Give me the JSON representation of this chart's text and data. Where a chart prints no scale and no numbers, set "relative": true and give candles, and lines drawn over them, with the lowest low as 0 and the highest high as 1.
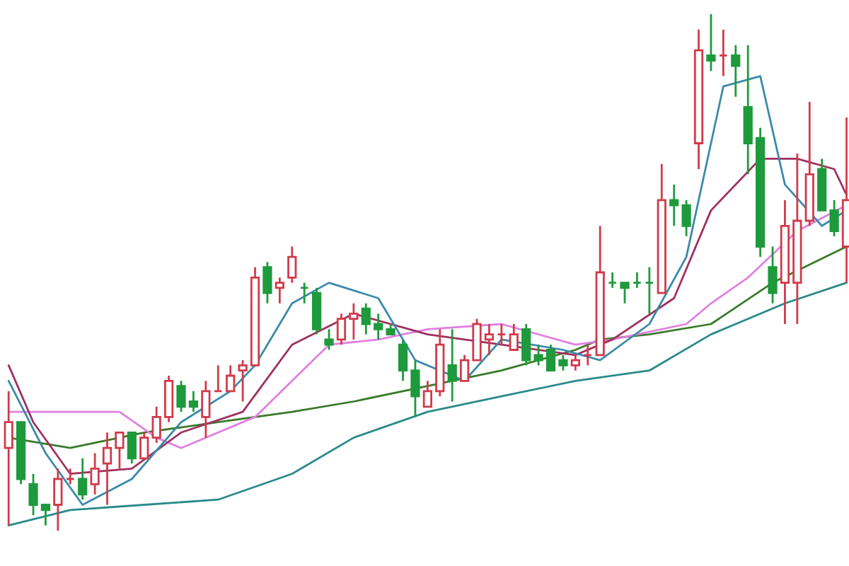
{
  "chart_data": {
    "type": "candlestick",
    "relative": true,
    "categories": [
      null,
      null,
      null,
      null,
      null,
      null,
      null,
      null,
      null,
      null,
      null,
      null,
      null,
      null,
      null,
      null,
      null,
      null,
      null,
      null,
      null,
      null,
      null,
      null,
      null,
      null,
      null,
      null,
      null,
      null,
      null,
      null,
      null,
      null,
      null,
      null,
      null,
      null,
      null,
      null,
      null,
      null,
      null,
      null,
      null,
      null,
      null,
      null,
      null,
      null,
      null,
      null,
      null,
      null,
      null,
      null,
      null,
      null,
      null,
      null,
      null,
      null,
      null,
      null,
      null,
      null,
      null,
      null,
      null
    ],
    "ohlc": [
      [
        0.16,
        0.27,
        0.01,
        0.21
      ],
      [
        0.21,
        0.21,
        0.09,
        0.1
      ],
      [
        0.09,
        0.11,
        0.03,
        0.05
      ],
      [
        0.05,
        0.05,
        0.01,
        0.04
      ],
      [
        0.05,
        0.12,
        0,
        0.1
      ],
      [
        0.1,
        0.12,
        0.09,
        0.1
      ],
      [
        0.1,
        0.14,
        0.06,
        0.07
      ],
      [
        0.09,
        0.15,
        0.07,
        0.12
      ],
      [
        0.13,
        0.19,
        0.05,
        0.16
      ],
      [
        0.16,
        0.19,
        0.12,
        0.19
      ],
      [
        0.19,
        0.19,
        0.13,
        0.14
      ],
      [
        0.14,
        0.19,
        0.14,
        0.18
      ],
      [
        0.18,
        0.24,
        0.17,
        0.22
      ],
      [
        0.22,
        0.3,
        0.21,
        0.29
      ],
      [
        0.28,
        0.29,
        0.23,
        0.24
      ],
      [
        0.25,
        0.27,
        0.23,
        0.24
      ],
      [
        0.22,
        0.29,
        0.18,
        0.27
      ],
      [
        0.27,
        0.32,
        0.27,
        0.27
      ],
      [
        0.27,
        0.32,
        0.27,
        0.3
      ],
      [
        0.31,
        0.33,
        0.25,
        0.32
      ],
      [
        0.32,
        0.51,
        0.32,
        0.49
      ],
      [
        0.51,
        0.52,
        0.44,
        0.46
      ],
      [
        0.47,
        0.49,
        0.44,
        0.48
      ],
      [
        0.49,
        0.55,
        0.48,
        0.53
      ],
      [
        0.47,
        0.48,
        0.44,
        0.47
      ],
      [
        0.46,
        0.47,
        0.38,
        0.39
      ],
      [
        0.37,
        0.39,
        0.35,
        0.36
      ],
      [
        0.37,
        0.42,
        0.36,
        0.41
      ],
      [
        0.41,
        0.44,
        0.37,
        0.42
      ],
      [
        0.43,
        0.44,
        0.38,
        0.4
      ],
      [
        0.4,
        0.42,
        0.37,
        0.39
      ],
      [
        0.39,
        0.4,
        0.38,
        0.38
      ],
      [
        0.36,
        0.37,
        0.29,
        0.31
      ],
      [
        0.31,
        0.33,
        0.22,
        0.26
      ],
      [
        0.24,
        0.29,
        0.24,
        0.27
      ],
      [
        0.27,
        0.39,
        0.26,
        0.36
      ],
      [
        0.32,
        0.39,
        0.25,
        0.29
      ],
      [
        0.29,
        0.34,
        0.29,
        0.33
      ],
      [
        0.33,
        0.41,
        0.33,
        0.4
      ],
      [
        0.37,
        0.4,
        0.34,
        0.38
      ],
      [
        0.38,
        0.4,
        0.36,
        0.38
      ],
      [
        0.35,
        0.4,
        0.35,
        0.38
      ],
      [
        0.39,
        0.4,
        0.32,
        0.33
      ],
      [
        0.34,
        0.36,
        0.32,
        0.33
      ],
      [
        0.35,
        0.36,
        0.31,
        0.31
      ],
      [
        0.33,
        0.34,
        0.31,
        0.32
      ],
      [
        0.32,
        0.34,
        0.31,
        0.33
      ],
      [
        0.34,
        0.36,
        0.32,
        0.34
      ],
      [
        0.34,
        0.59,
        0.34,
        0.5
      ],
      [
        0.48,
        0.5,
        0.47,
        0.48
      ],
      [
        0.48,
        0.48,
        0.44,
        0.47
      ],
      [
        0.48,
        0.5,
        0.47,
        0.48
      ],
      [
        0.48,
        0.51,
        0.42,
        0.48
      ],
      [
        0.46,
        0.71,
        0.46,
        0.64
      ],
      [
        0.64,
        0.67,
        0.59,
        0.63
      ],
      [
        0.63,
        0.64,
        0.57,
        0.59
      ],
      [
        0.75,
        0.97,
        0.7,
        0.93
      ],
      [
        0.92,
        1.0,
        0.89,
        0.91
      ],
      [
        0.92,
        0.97,
        0.88,
        0.92
      ],
      [
        0.92,
        0.94,
        0.84,
        0.9
      ],
      [
        0.82,
        0.94,
        0.69,
        0.75
      ],
      [
        0.76,
        0.78,
        0.53,
        0.55
      ],
      [
        0.51,
        0.55,
        0.44,
        0.46
      ],
      [
        0.48,
        0.64,
        0.4,
        0.59
      ],
      [
        0.48,
        0.73,
        0.4,
        0.6
      ],
      [
        0.6,
        0.83,
        0.59,
        0.69
      ],
      [
        0.7,
        0.72,
        0.62,
        0.62
      ],
      [
        0.62,
        0.64,
        0.57,
        0.58
      ],
      [
        0.55,
        0.8,
        0.48,
        0.64
      ]
    ],
    "colors": [
      "#d03a4a",
      "#1e9a3c",
      "#1e9a3c",
      "#1e9a3c",
      "#d03a4a",
      "#d03a4a",
      "#1e9a3c",
      "#d03a4a",
      "#d03a4a",
      "#d03a4a",
      "#1e9a3c",
      "#d03a4a",
      "#d03a4a",
      "#d03a4a",
      "#1e9a3c",
      "#1e9a3c",
      "#d03a4a",
      "#d03a4a",
      "#d03a4a",
      "#d03a4a",
      "#d03a4a",
      "#1e9a3c",
      "#d03a4a",
      "#d03a4a",
      "#1e9a3c",
      "#1e9a3c",
      "#1e9a3c",
      "#d03a4a",
      "#d03a4a",
      "#1e9a3c",
      "#1e9a3c",
      "#1e9a3c",
      "#1e9a3c",
      "#1e9a3c",
      "#d03a4a",
      "#d03a4a",
      "#1e9a3c",
      "#d03a4a",
      "#d03a4a",
      "#d03a4a",
      "#d03a4a",
      "#d03a4a",
      "#1e9a3c",
      "#1e9a3c",
      "#1e9a3c",
      "#1e9a3c",
      "#d03a4a",
      "#d03a4a",
      "#d03a4a",
      "#1e9a3c",
      "#1e9a3c",
      "#1e9a3c",
      "#1e9a3c",
      "#d03a4a",
      "#1e9a3c",
      "#1e9a3c",
      "#d03a4a",
      "#1e9a3c",
      "#d03a4a",
      "#1e9a3c",
      "#1e9a3c",
      "#1e9a3c",
      "#1e9a3c",
      "#d03a4a",
      "#d03a4a",
      "#d03a4a",
      "#1e9a3c",
      "#1e9a3c",
      "#d03a4a"
    ],
    "series": [
      {
        "type": "line",
        "color": "#2a8a8a",
        "values": [
          0.01,
          null,
          null,
          null,
          null,
          0.04,
          null,
          null,
          null,
          null,
          null,
          0.05,
          null,
          null,
          null,
          null,
          null,
          0.06,
          null,
          null,
          null,
          null,
          null,
          0.11,
          null,
          null,
          null,
          null,
          0.18,
          null,
          null,
          null,
          null,
          null,
          0.23,
          null,
          null,
          null,
          null,
          null,
          0.26,
          null,
          null,
          null,
          null,
          null,
          0.29,
          null,
          null,
          null,
          null,
          null,
          0.31,
          null,
          null,
          null,
          null,
          0.38,
          null,
          null,
          null,
          null,
          null,
          0.44,
          null,
          null,
          null,
          null,
          0.48
        ]
      },
      {
        "type": "line",
        "color": "#3a7a2a",
        "values": [
          0.18,
          null,
          null,
          null,
          null,
          0.16,
          null,
          null,
          null,
          null,
          null,
          0.19,
          null,
          null,
          null,
          null,
          null,
          0.21,
          null,
          null,
          null,
          null,
          null,
          0.23,
          null,
          null,
          null,
          null,
          0.25,
          null,
          null,
          null,
          null,
          null,
          0.28,
          null,
          null,
          null,
          null,
          null,
          0.31,
          null,
          null,
          null,
          null,
          null,
          0.35,
          null,
          0.37,
          null,
          null,
          null,
          0.38,
          null,
          null,
          null,
          null,
          0.4,
          null,
          null,
          null,
          null,
          0.48,
          null,
          null,
          null,
          null,
          null,
          0.55
        ]
      },
      {
        "type": "line",
        "color": "#e080e0",
        "values": [
          0.23,
          null,
          null,
          null,
          0.23,
          null,
          null,
          null,
          null,
          0.23,
          null,
          null,
          0.18,
          null,
          0.16,
          null,
          null,
          null,
          null,
          null,
          0.22,
          null,
          null,
          0.29,
          null,
          null,
          0.36,
          null,
          null,
          null,
          0.37,
          null,
          null,
          null,
          0.39,
          null,
          null,
          null,
          null,
          null,
          0.4,
          null,
          null,
          null,
          null,
          null,
          0.36,
          null,
          null,
          0.37,
          null,
          null,
          null,
          null,
          null,
          0.4,
          null,
          0.44,
          null,
          null,
          0.49,
          null,
          null,
          null,
          0.58,
          null,
          null,
          null,
          0.63
        ]
      },
      {
        "type": "line",
        "color": "#a03060",
        "values": [
          0.32,
          null,
          0.21,
          null,
          null,
          0.11,
          null,
          null,
          null,
          null,
          0.12,
          null,
          null,
          null,
          0.19,
          null,
          null,
          null,
          null,
          0.23,
          null,
          null,
          null,
          0.36,
          null,
          null,
          null,
          null,
          0.42,
          null,
          null,
          null,
          null,
          null,
          0.38,
          null,
          null,
          null,
          null,
          null,
          0.36,
          null,
          null,
          null,
          null,
          null,
          0.34,
          null,
          null,
          0.37,
          null,
          null,
          null,
          null,
          0.45,
          null,
          null,
          0.62,
          null,
          null,
          null,
          0.72,
          null,
          null,
          0.72,
          null,
          null,
          0.7,
          0.65
        ]
      },
      {
        "type": "line",
        "color": "#3a8aaa",
        "values": [
          0.29,
          null,
          null,
          0.15,
          null,
          null,
          0.05,
          null,
          null,
          null,
          0.1,
          null,
          null,
          null,
          0.21,
          null,
          null,
          null,
          0.27,
          null,
          0.32,
          null,
          null,
          0.44,
          null,
          null,
          0.48,
          null,
          null,
          null,
          0.45,
          null,
          null,
          0.33,
          null,
          null,
          null,
          0.29,
          null,
          null,
          0.37,
          null,
          null,
          null,
          null,
          0.35,
          null,
          null,
          0.33,
          null,
          null,
          null,
          0.4,
          null,
          null,
          0.53,
          null,
          null,
          0.86,
          null,
          null,
          0.88,
          null,
          0.67,
          null,
          null,
          0.59,
          null,
          0.62
        ]
      }
    ]
  }
}
